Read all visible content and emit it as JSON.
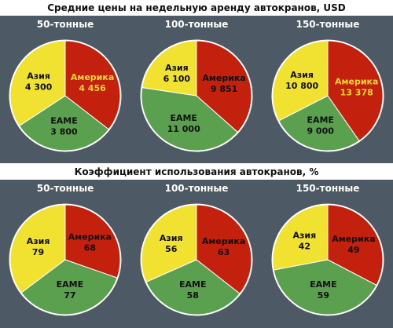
{
  "chart_data": [
    {
      "type": "pie",
      "title": "Средние цены на недельную аренду автокранов, USD",
      "pies": [
        {
          "title": "50-тонные",
          "slices": [
            {
              "label": "Америка",
              "value": 4456,
              "display": "4 456",
              "color": "#c4200e",
              "text_color": "#f2d634"
            },
            {
              "label": "EAME",
              "value": 3800,
              "display": "3 800",
              "color": "#5aa04e",
              "text_color": "#111111"
            },
            {
              "label": "Азия",
              "value": 4300,
              "display": "4 300",
              "color": "#f1e232",
              "text_color": "#111111"
            }
          ]
        },
        {
          "title": "100-тонные",
          "slices": [
            {
              "label": "Америка",
              "value": 9851,
              "display": "9 851",
              "color": "#c4200e",
              "text_color": "#111111"
            },
            {
              "label": "EAME",
              "value": 11000,
              "display": "11 000",
              "color": "#5aa04e",
              "text_color": "#111111"
            },
            {
              "label": "Азия",
              "value": 6100,
              "display": "6 100",
              "color": "#f1e232",
              "text_color": "#111111"
            }
          ]
        },
        {
          "title": "150-тонные",
          "slices": [
            {
              "label": "Америка",
              "value": 13378,
              "display": "13 378",
              "color": "#c4200e",
              "text_color": "#f2d634"
            },
            {
              "label": "EAME",
              "value": 9000,
              "display": "9 000",
              "color": "#5aa04e",
              "text_color": "#111111"
            },
            {
              "label": "Азия",
              "value": 10800,
              "display": "10 800",
              "color": "#f1e232",
              "text_color": "#111111"
            }
          ]
        }
      ]
    },
    {
      "type": "pie",
      "title": "Коэффициент использования автокранов, %",
      "pies": [
        {
          "title": "50-тонные",
          "slices": [
            {
              "label": "Америка",
              "value": 68,
              "display": "68",
              "color": "#c4200e",
              "text_color": "#111111"
            },
            {
              "label": "EAME",
              "value": 77,
              "display": "77",
              "color": "#5aa04e",
              "text_color": "#111111"
            },
            {
              "label": "Азия",
              "value": 79,
              "display": "79",
              "color": "#f1e232",
              "text_color": "#111111"
            }
          ]
        },
        {
          "title": "100-тонные",
          "slices": [
            {
              "label": "Америка",
              "value": 63,
              "display": "63",
              "color": "#c4200e",
              "text_color": "#111111"
            },
            {
              "label": "EAME",
              "value": 58,
              "display": "58",
              "color": "#5aa04e",
              "text_color": "#111111"
            },
            {
              "label": "Азия",
              "value": 56,
              "display": "56",
              "color": "#f1e232",
              "text_color": "#111111"
            }
          ]
        },
        {
          "title": "150-тонные",
          "slices": [
            {
              "label": "Америка",
              "value": 49,
              "display": "49",
              "color": "#c4200e",
              "text_color": "#111111"
            },
            {
              "label": "EAME",
              "value": 59,
              "display": "59",
              "color": "#5aa04e",
              "text_color": "#111111"
            },
            {
              "label": "Азия",
              "value": 42,
              "display": "42",
              "color": "#f1e232",
              "text_color": "#111111"
            }
          ]
        }
      ]
    }
  ]
}
